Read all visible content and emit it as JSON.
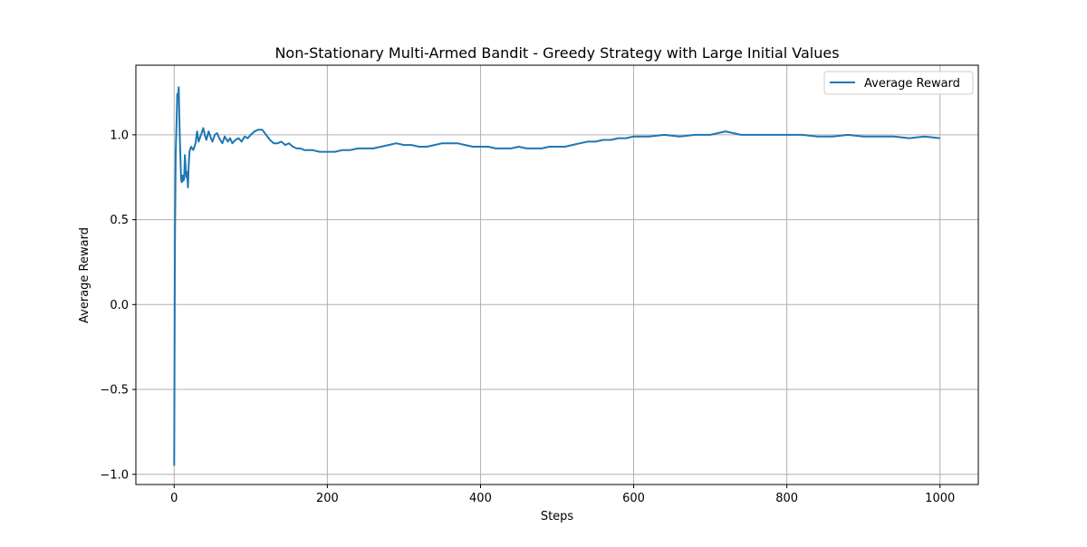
{
  "chart_data": {
    "type": "line",
    "title": "Non-Stationary Multi-Armed Bandit - Greedy Strategy with Large Initial Values",
    "xlabel": "Steps",
    "ylabel": "Average Reward",
    "xlim": [
      -50,
      1050
    ],
    "ylim": [
      -1.06,
      1.41
    ],
    "xticks": [
      0,
      200,
      400,
      600,
      800,
      1000
    ],
    "xtick_labels": [
      "0",
      "200",
      "400",
      "600",
      "800",
      "1000"
    ],
    "yticks": [
      -1.0,
      -0.5,
      0.0,
      0.5,
      1.0
    ],
    "ytick_labels": [
      "−1.0",
      "−0.5",
      "0.0",
      "0.5",
      "1.0"
    ],
    "grid": true,
    "legend_position": "upper right",
    "series": [
      {
        "name": "Average Reward",
        "color": "#1f77b4",
        "x": [
          0,
          1,
          2,
          3,
          4,
          5,
          6,
          7,
          8,
          9,
          10,
          11,
          12,
          13,
          14,
          15,
          16,
          17,
          18,
          19,
          20,
          22,
          25,
          28,
          30,
          32,
          35,
          38,
          40,
          42,
          45,
          48,
          50,
          53,
          56,
          60,
          63,
          66,
          70,
          73,
          76,
          80,
          84,
          88,
          92,
          96,
          100,
          105,
          110,
          115,
          120,
          125,
          130,
          135,
          140,
          145,
          150,
          155,
          160,
          165,
          170,
          180,
          190,
          200,
          210,
          220,
          230,
          240,
          250,
          260,
          270,
          280,
          290,
          300,
          310,
          320,
          330,
          340,
          350,
          360,
          370,
          380,
          390,
          400,
          410,
          420,
          430,
          440,
          450,
          460,
          470,
          480,
          490,
          500,
          510,
          520,
          530,
          540,
          550,
          560,
          570,
          580,
          590,
          600,
          620,
          640,
          660,
          680,
          700,
          710,
          720,
          730,
          740,
          760,
          780,
          800,
          820,
          840,
          860,
          880,
          900,
          920,
          940,
          960,
          980,
          1000
        ],
        "y": [
          -0.95,
          0.35,
          0.9,
          1.05,
          1.24,
          1.22,
          1.28,
          1.05,
          0.9,
          0.74,
          0.72,
          0.76,
          0.73,
          0.74,
          0.88,
          0.8,
          0.75,
          0.78,
          0.69,
          0.82,
          0.9,
          0.93,
          0.91,
          0.95,
          1.02,
          0.96,
          1.0,
          1.04,
          1.0,
          0.97,
          1.02,
          0.98,
          0.96,
          1.0,
          1.01,
          0.97,
          0.95,
          0.99,
          0.96,
          0.98,
          0.95,
          0.97,
          0.98,
          0.96,
          0.99,
          0.98,
          1.0,
          1.02,
          1.03,
          1.03,
          1.0,
          0.97,
          0.95,
          0.95,
          0.96,
          0.94,
          0.95,
          0.93,
          0.92,
          0.92,
          0.91,
          0.91,
          0.9,
          0.9,
          0.9,
          0.91,
          0.91,
          0.92,
          0.92,
          0.92,
          0.93,
          0.94,
          0.95,
          0.94,
          0.94,
          0.93,
          0.93,
          0.94,
          0.95,
          0.95,
          0.95,
          0.94,
          0.93,
          0.93,
          0.93,
          0.92,
          0.92,
          0.92,
          0.93,
          0.92,
          0.92,
          0.92,
          0.93,
          0.93,
          0.93,
          0.94,
          0.95,
          0.96,
          0.96,
          0.97,
          0.97,
          0.98,
          0.98,
          0.99,
          0.99,
          1.0,
          0.99,
          1.0,
          1.0,
          1.01,
          1.02,
          1.01,
          1.0,
          1.0,
          1.0,
          1.0,
          1.0,
          0.99,
          0.99,
          1.0,
          0.99,
          0.99,
          0.99,
          0.98,
          0.99,
          0.98
        ]
      }
    ]
  }
}
